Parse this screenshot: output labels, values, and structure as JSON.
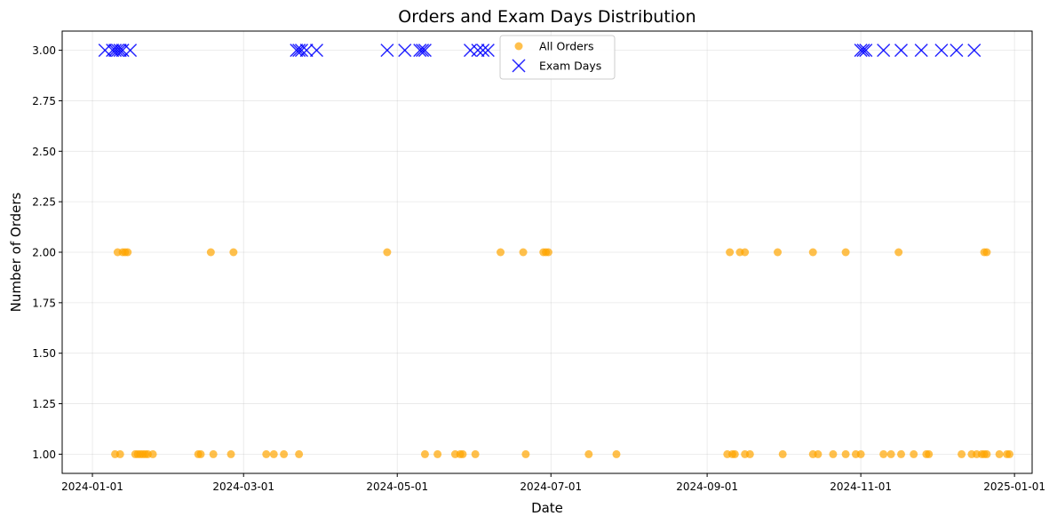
{
  "chart_data": {
    "type": "scatter",
    "title": "Orders and Exam Days Distribution",
    "xlabel": "Date",
    "ylabel": "Number of Orders",
    "xlim": [
      "2023-12-20",
      "2025-01-08"
    ],
    "ylim": [
      0.905,
      3.095
    ],
    "x_ticks": [
      "2024-01-01",
      "2024-03-01",
      "2024-05-01",
      "2024-07-01",
      "2024-09-01",
      "2024-11-01",
      "2025-01-01"
    ],
    "y_ticks": [
      "1.00",
      "1.25",
      "1.50",
      "1.75",
      "2.00",
      "2.25",
      "2.50",
      "2.75",
      "3.00"
    ],
    "grid": true,
    "legend_position": "top-center",
    "series": [
      {
        "name": "All Orders",
        "marker": "circle",
        "color": "#FFA500",
        "points": [
          [
            "2024-01-10",
            1
          ],
          [
            "2024-01-12",
            1
          ],
          [
            "2024-01-18",
            1
          ],
          [
            "2024-01-19",
            1
          ],
          [
            "2024-01-20",
            1
          ],
          [
            "2024-01-21",
            1
          ],
          [
            "2024-01-22",
            1
          ],
          [
            "2024-01-23",
            1
          ],
          [
            "2024-01-25",
            1
          ],
          [
            "2024-02-12",
            1
          ],
          [
            "2024-02-13",
            1
          ],
          [
            "2024-02-18",
            1
          ],
          [
            "2024-02-25",
            1
          ],
          [
            "2024-03-10",
            1
          ],
          [
            "2024-03-13",
            1
          ],
          [
            "2024-03-17",
            1
          ],
          [
            "2024-03-23",
            1
          ],
          [
            "2024-05-12",
            1
          ],
          [
            "2024-05-17",
            1
          ],
          [
            "2024-05-24",
            1
          ],
          [
            "2024-05-26",
            1
          ],
          [
            "2024-05-27",
            1
          ],
          [
            "2024-06-01",
            1
          ],
          [
            "2024-06-21",
            1
          ],
          [
            "2024-07-16",
            1
          ],
          [
            "2024-07-27",
            1
          ],
          [
            "2024-09-09",
            1
          ],
          [
            "2024-09-11",
            1
          ],
          [
            "2024-09-12",
            1
          ],
          [
            "2024-09-16",
            1
          ],
          [
            "2024-09-18",
            1
          ],
          [
            "2024-10-01",
            1
          ],
          [
            "2024-10-13",
            1
          ],
          [
            "2024-10-15",
            1
          ],
          [
            "2024-10-21",
            1
          ],
          [
            "2024-10-26",
            1
          ],
          [
            "2024-10-30",
            1
          ],
          [
            "2024-11-01",
            1
          ],
          [
            "2024-11-10",
            1
          ],
          [
            "2024-11-13",
            1
          ],
          [
            "2024-11-17",
            1
          ],
          [
            "2024-11-22",
            1
          ],
          [
            "2024-11-27",
            1
          ],
          [
            "2024-11-28",
            1
          ],
          [
            "2024-12-11",
            1
          ],
          [
            "2024-12-15",
            1
          ],
          [
            "2024-12-17",
            1
          ],
          [
            "2024-12-19",
            1
          ],
          [
            "2024-12-20",
            1
          ],
          [
            "2024-12-21",
            1
          ],
          [
            "2024-12-26",
            1
          ],
          [
            "2024-12-29",
            1
          ],
          [
            "2024-12-30",
            1
          ],
          [
            "2024-01-11",
            2
          ],
          [
            "2024-01-13",
            2
          ],
          [
            "2024-01-14",
            2
          ],
          [
            "2024-01-15",
            2
          ],
          [
            "2024-02-17",
            2
          ],
          [
            "2024-02-26",
            2
          ],
          [
            "2024-04-27",
            2
          ],
          [
            "2024-06-11",
            2
          ],
          [
            "2024-06-20",
            2
          ],
          [
            "2024-06-28",
            2
          ],
          [
            "2024-06-29",
            2
          ],
          [
            "2024-06-30",
            2
          ],
          [
            "2024-09-10",
            2
          ],
          [
            "2024-09-14",
            2
          ],
          [
            "2024-09-16",
            2
          ],
          [
            "2024-09-29",
            2
          ],
          [
            "2024-10-13",
            2
          ],
          [
            "2024-10-26",
            2
          ],
          [
            "2024-11-16",
            2
          ],
          [
            "2024-12-20",
            2
          ],
          [
            "2024-12-21",
            2
          ]
        ]
      },
      {
        "name": "Exam Days",
        "marker": "x",
        "color": "#0000FF",
        "points": [
          [
            "2024-01-06",
            3
          ],
          [
            "2024-01-09",
            3
          ],
          [
            "2024-01-10",
            3
          ],
          [
            "2024-01-11",
            3
          ],
          [
            "2024-01-12",
            3
          ],
          [
            "2024-01-13",
            3
          ],
          [
            "2024-01-16",
            3
          ],
          [
            "2024-03-22",
            3
          ],
          [
            "2024-03-23",
            3
          ],
          [
            "2024-03-24",
            3
          ],
          [
            "2024-03-26",
            3
          ],
          [
            "2024-03-30",
            3
          ],
          [
            "2024-04-27",
            3
          ],
          [
            "2024-05-04",
            3
          ],
          [
            "2024-05-10",
            3
          ],
          [
            "2024-05-11",
            3
          ],
          [
            "2024-05-12",
            3
          ],
          [
            "2024-05-30",
            3
          ],
          [
            "2024-06-02",
            3
          ],
          [
            "2024-06-04",
            3
          ],
          [
            "2024-06-06",
            3
          ],
          [
            "2024-11-01",
            3
          ],
          [
            "2024-11-02",
            3
          ],
          [
            "2024-11-03",
            3
          ],
          [
            "2024-11-10",
            3
          ],
          [
            "2024-11-17",
            3
          ],
          [
            "2024-11-25",
            3
          ],
          [
            "2024-12-03",
            3
          ],
          [
            "2024-12-09",
            3
          ],
          [
            "2024-12-16",
            3
          ]
        ]
      }
    ]
  }
}
